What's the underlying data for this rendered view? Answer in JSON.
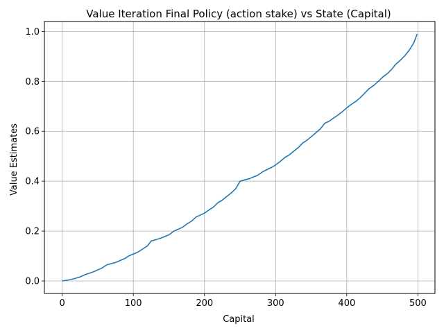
{
  "chart_data": {
    "type": "line",
    "title": "Value Iteration Final Policy (action stake) vs State (Capital)",
    "xlabel": "Capital",
    "ylabel": "Value Estimates",
    "xlim": [
      -25,
      524
    ],
    "ylim": [
      -0.05,
      1.04
    ],
    "xticks": [
      0,
      100,
      200,
      300,
      400,
      500
    ],
    "xtick_labels": [
      "0",
      "100",
      "200",
      "300",
      "400",
      "500"
    ],
    "yticks": [
      0.0,
      0.2,
      0.4,
      0.6,
      0.8,
      1.0
    ],
    "ytick_labels": [
      "0.0",
      "0.2",
      "0.4",
      "0.6",
      "0.8",
      "1.0"
    ],
    "grid": true,
    "series": [
      {
        "color": "#1f77b4",
        "x": [
          0,
          13,
          25,
          32,
          44,
          56,
          63,
          75,
          88,
          94,
          106,
          113,
          120,
          125,
          138,
          150,
          157,
          169,
          175,
          182,
          188,
          200,
          206,
          213,
          219,
          225,
          231,
          238,
          244,
          250,
          263,
          275,
          282,
          294,
          300,
          306,
          313,
          319,
          325,
          332,
          338,
          344,
          350,
          357,
          363,
          369,
          375,
          382,
          388,
          394,
          400,
          406,
          413,
          419,
          425,
          431,
          438,
          444,
          450,
          457,
          463,
          469,
          475,
          482,
          488,
          494,
          499
        ],
        "y": [
          0.0,
          0.006,
          0.016,
          0.025,
          0.037,
          0.052,
          0.065,
          0.074,
          0.09,
          0.101,
          0.115,
          0.128,
          0.141,
          0.16,
          0.171,
          0.185,
          0.2,
          0.215,
          0.228,
          0.24,
          0.256,
          0.272,
          0.284,
          0.297,
          0.314,
          0.324,
          0.338,
          0.354,
          0.37,
          0.4,
          0.41,
          0.424,
          0.438,
          0.455,
          0.465,
          0.478,
          0.495,
          0.505,
          0.519,
          0.535,
          0.553,
          0.564,
          0.578,
          0.595,
          0.61,
          0.632,
          0.64,
          0.654,
          0.666,
          0.679,
          0.694,
          0.707,
          0.72,
          0.735,
          0.752,
          0.77,
          0.784,
          0.799,
          0.816,
          0.831,
          0.848,
          0.869,
          0.884,
          0.904,
          0.926,
          0.953,
          0.99
        ]
      }
    ]
  }
}
